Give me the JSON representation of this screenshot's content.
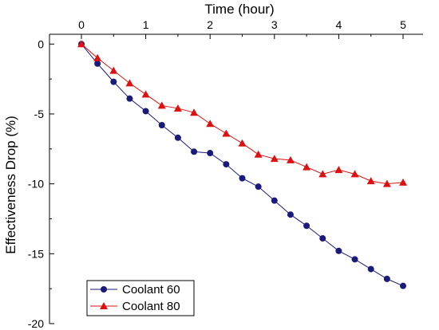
{
  "chart_data": {
    "type": "line",
    "xlabel": "Time (hour)",
    "ylabel": "Effectiveness Drop (%)",
    "xlim": [
      -0.5,
      5.2
    ],
    "ylim": [
      -20,
      0.7
    ],
    "x_ticks": [
      0,
      1,
      2,
      3,
      4,
      5
    ],
    "x_tick_labels": [
      "0",
      "1",
      "2",
      "3",
      "4",
      "5"
    ],
    "y_ticks": [
      0,
      -5,
      -10,
      -15,
      -20
    ],
    "y_tick_labels": [
      "0",
      "-5",
      "-10",
      "-15",
      "-20"
    ],
    "x_axis_position": "top",
    "grid": false,
    "legend_position": "bottom-left",
    "series": [
      {
        "name": "Coolant 60",
        "color": "#1a1a7a",
        "marker": "circle",
        "x": [
          0,
          0.25,
          0.5,
          0.75,
          1.0,
          1.25,
          1.5,
          1.75,
          2.0,
          2.25,
          2.5,
          2.75,
          3.0,
          3.25,
          3.5,
          3.75,
          4.0,
          4.25,
          4.5,
          4.75,
          5.0
        ],
        "y": [
          0,
          -1.4,
          -2.7,
          -3.9,
          -4.8,
          -5.8,
          -6.7,
          -7.7,
          -7.8,
          -8.6,
          -9.6,
          -10.2,
          -11.2,
          -12.2,
          -13.0,
          -13.9,
          -14.8,
          -15.4,
          -16.1,
          -16.8,
          -17.3
        ]
      },
      {
        "name": "Coolant 80",
        "color": "#dd1111",
        "marker": "triangle",
        "x": [
          0,
          0.25,
          0.5,
          0.75,
          1.0,
          1.25,
          1.5,
          1.75,
          2.0,
          2.25,
          2.5,
          2.75,
          3.0,
          3.25,
          3.5,
          3.75,
          4.0,
          4.25,
          4.5,
          4.75,
          5.0
        ],
        "y": [
          0,
          -1.0,
          -1.9,
          -2.8,
          -3.6,
          -4.4,
          -4.6,
          -4.9,
          -5.7,
          -6.4,
          -7.1,
          -7.9,
          -8.2,
          -8.3,
          -8.8,
          -9.3,
          -9.0,
          -9.3,
          -9.8,
          -10.0,
          -9.9
        ]
      }
    ]
  }
}
